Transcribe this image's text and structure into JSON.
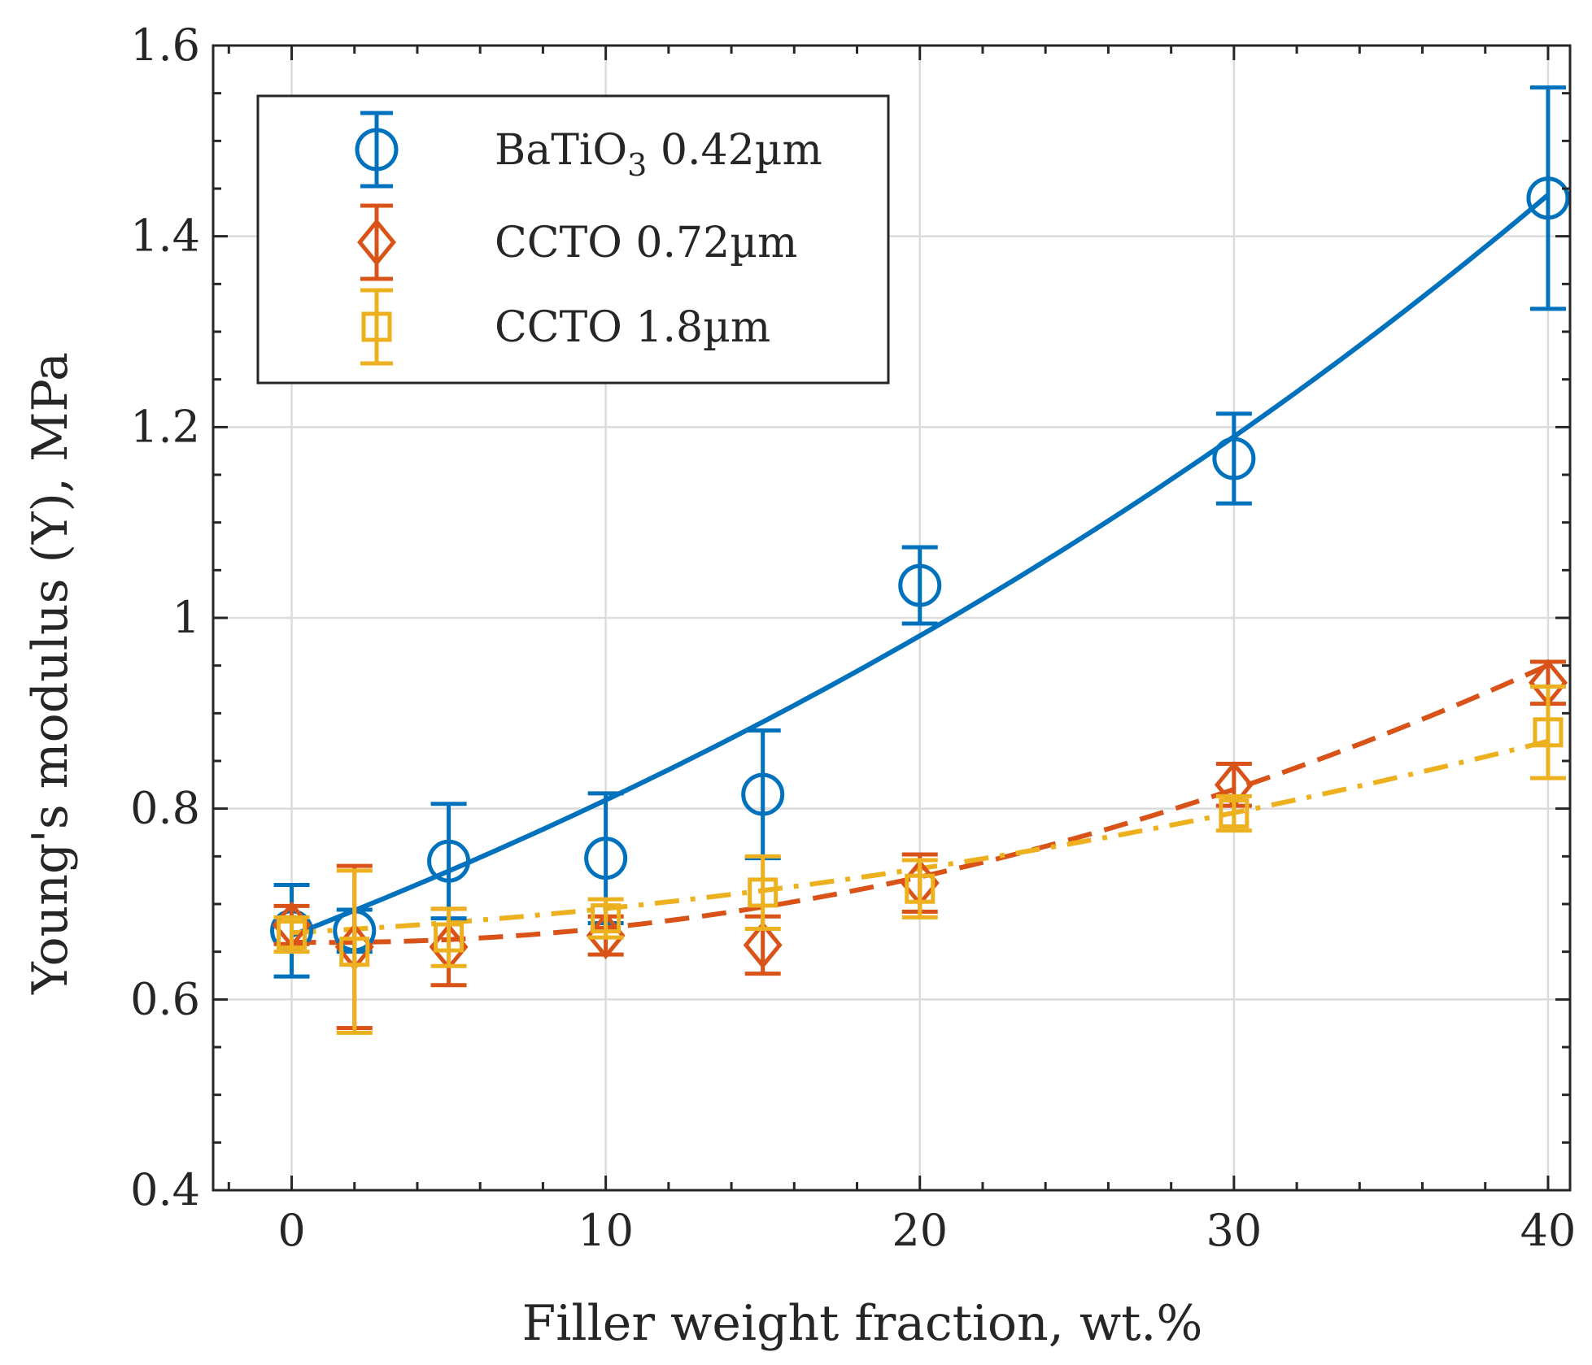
{
  "chart_data": {
    "type": "scatter",
    "title": "",
    "xlabel": "Filler weight fraction, wt.%",
    "ylabel": "Young's modulus (Y), MPa",
    "xlim": [
      -2.5,
      40.7
    ],
    "ylim": [
      0.4,
      1.6
    ],
    "xticks": [
      0,
      10,
      20,
      30,
      40
    ],
    "xtick_labels": [
      "0",
      "10",
      "20",
      "30",
      "40"
    ],
    "yticks": [
      0.4,
      0.6,
      0.8,
      1.0,
      1.2,
      1.4,
      1.6
    ],
    "ytick_labels": [
      "0.4",
      "0.6",
      "0.8",
      "1",
      "1.2",
      "1.4",
      "1.6"
    ],
    "grid": true,
    "legend_position": "top-left",
    "series": [
      {
        "name": "BaTiO3 0.42µm",
        "legend_label": {
          "base": "BaTiO",
          "subscript": "3",
          "suffix": " 0.42µm"
        },
        "color": "#0072BD",
        "marker": "circle",
        "x": [
          0,
          2,
          5,
          10,
          15,
          20,
          30,
          40
        ],
        "y": [
          0.672,
          0.672,
          0.745,
          0.748,
          0.815,
          1.034,
          1.167,
          1.44
        ],
        "err": [
          0.048,
          0.022,
          0.06,
          0.068,
          0.067,
          0.04,
          0.047,
          0.116
        ],
        "fit": {
          "style": "solid",
          "y0": 0.667,
          "growth": 0.0193
        }
      },
      {
        "name": "CCTO 0.72µm",
        "legend_label": {
          "base": "CCTO 0.72µm",
          "subscript": "",
          "suffix": ""
        },
        "color": "#D95319",
        "marker": "diamond",
        "x": [
          0,
          2,
          5,
          10,
          15,
          20,
          30,
          40
        ],
        "y": [
          0.678,
          0.655,
          0.655,
          0.667,
          0.657,
          0.722,
          0.825,
          0.932
        ],
        "err": [
          0.02,
          0.085,
          0.04,
          0.02,
          0.03,
          0.03,
          0.022,
          0.022
        ],
        "fit": {
          "style": "dashed",
          "y0": 0.66,
          "a": -0.00042,
          "b": 0.000192
        }
      },
      {
        "name": "CCTO 1.8µm",
        "legend_label": {
          "base": "CCTO 1.8µm",
          "subscript": "",
          "suffix": ""
        },
        "color": "#EDB120",
        "marker": "square",
        "x": [
          0,
          2,
          5,
          10,
          15,
          20,
          30,
          40
        ],
        "y": [
          0.668,
          0.65,
          0.665,
          0.685,
          0.712,
          0.716,
          0.795,
          0.88
        ],
        "err": [
          0.018,
          0.085,
          0.03,
          0.02,
          0.038,
          0.03,
          0.018,
          0.048
        ],
        "fit": {
          "style": "dashdot",
          "y0": 0.67,
          "a": 0.0017,
          "b": 8.3e-05
        }
      }
    ]
  }
}
